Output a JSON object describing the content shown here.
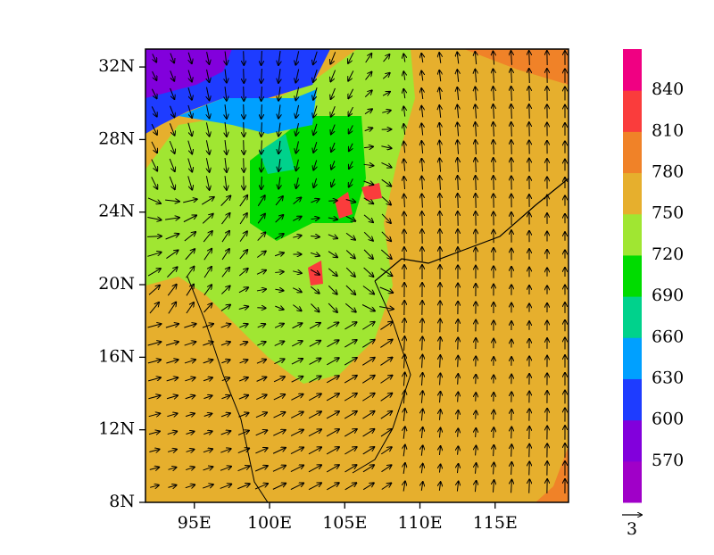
{
  "map": {
    "lat_ticks": [
      {
        "value": 8,
        "label": "8N"
      },
      {
        "value": 12,
        "label": "12N"
      },
      {
        "value": 16,
        "label": "16N"
      },
      {
        "value": 20,
        "label": "20N"
      },
      {
        "value": 24,
        "label": "24N"
      },
      {
        "value": 28,
        "label": "28N"
      },
      {
        "value": 32,
        "label": "32N"
      }
    ],
    "lon_ticks": [
      {
        "value": 95,
        "label": "95E"
      },
      {
        "value": 100,
        "label": "100E"
      },
      {
        "value": 105,
        "label": "105E"
      },
      {
        "value": 110,
        "label": "110E"
      },
      {
        "value": 115,
        "label": "115E"
      }
    ],
    "colorbar": {
      "levels": [
        570,
        600,
        630,
        660,
        690,
        720,
        750,
        780,
        810,
        840
      ],
      "colors": [
        "#a000c8",
        "#8200dc",
        "#1e3cff",
        "#00a0ff",
        "#00d28c",
        "#00dc00",
        "#a0e632",
        "#e6af2d",
        "#f08228",
        "#fa3c3c",
        "#f00082"
      ]
    },
    "reference_vector": 3
  }
}
